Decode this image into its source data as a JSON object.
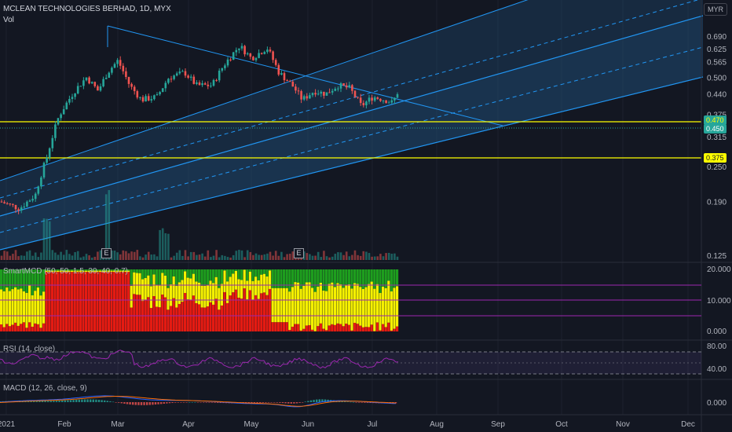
{
  "header": {
    "symbol_title": "MCLEAN TECHNOLOGIES BERHAD, 1D, MYX",
    "volume_label": "Vol",
    "currency": "MYR"
  },
  "price_axis": {
    "ticks": [
      "0.690",
      "0.625",
      "0.565",
      "0.500",
      "0.440",
      "0.375",
      "0.315",
      "0.250",
      "0.190",
      "0.125"
    ],
    "tick_values": [
      0.69,
      0.625,
      0.565,
      0.5,
      0.44,
      0.375,
      0.315,
      0.25,
      0.19,
      0.125
    ]
  },
  "badges": {
    "upper_line": "0.470",
    "last_price": "0.450",
    "support_line": "0.375"
  },
  "earnings_marker": "E",
  "smart_mcd": {
    "title": "SmartMCD (50, 50, 1.5, 30, 40, 0.7)",
    "ticks": [
      "20.000",
      "10.000",
      "0.000"
    ]
  },
  "rsi": {
    "title": "RSI (14, close)",
    "ticks": [
      "80.00",
      "40.00"
    ]
  },
  "macd": {
    "title": "MACD (12, 26, close, 9)",
    "ticks": [
      "0.000"
    ]
  },
  "time_axis": {
    "labels": [
      "2021",
      "Feb",
      "Mar",
      "Apr",
      "May",
      "Jun",
      "Jul",
      "Aug",
      "Sep",
      "Oct",
      "Nov",
      "Dec"
    ]
  },
  "colors": {
    "background": "#131722",
    "up": "#26a69a",
    "down": "#ef5350",
    "channel": "#2196f3",
    "horizontal": "#ffff00",
    "smart_green": "#1e9e1e",
    "smart_yellow": "#f5f000",
    "smart_red": "#e51b12",
    "rsi_line": "#9c27b0",
    "macd_line": "#2962ff",
    "signal_line": "#ff6d00"
  }
}
